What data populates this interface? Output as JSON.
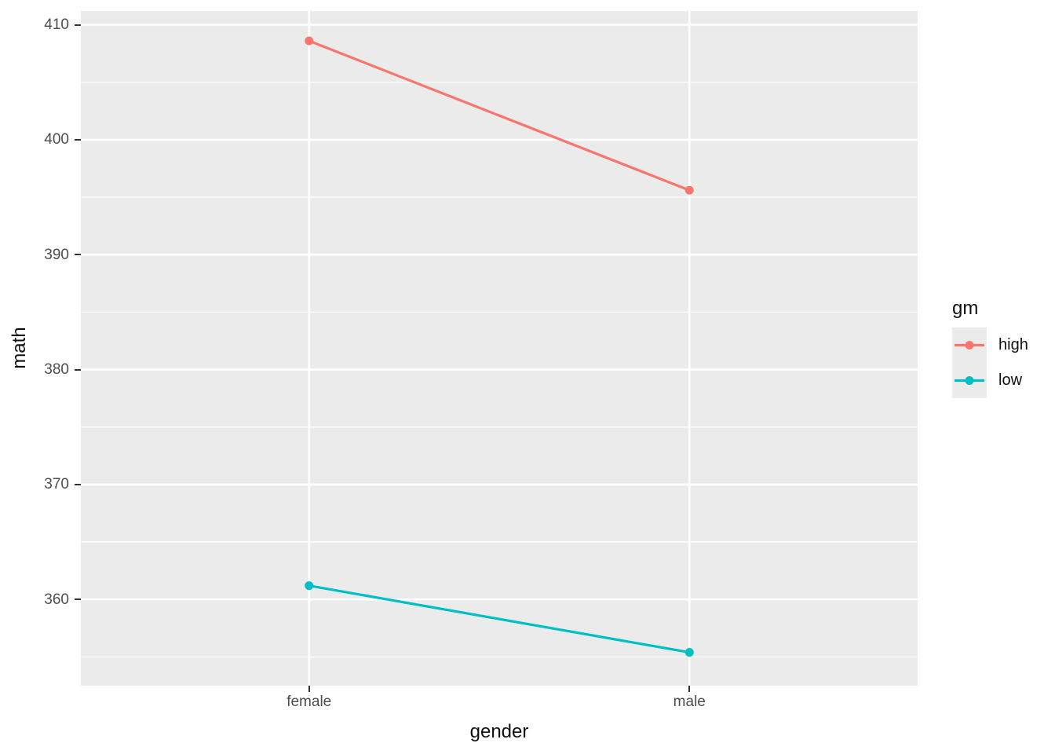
{
  "chart_data": {
    "type": "line",
    "title": "",
    "xlabel": "gender",
    "ylabel": "math",
    "categories": [
      "female",
      "male"
    ],
    "series": [
      {
        "name": "high",
        "color": "#F8766D",
        "values": [
          408.6,
          395.6
        ]
      },
      {
        "name": "low",
        "color": "#00BFC4",
        "values": [
          361.2,
          355.4
        ]
      }
    ],
    "ylim": [
      352.5,
      411.2
    ],
    "yticks_major": [
      360,
      370,
      380,
      390,
      400,
      410
    ],
    "yticks_minor": [
      355,
      365,
      375,
      385,
      395,
      405
    ],
    "grid": "white major+minor horizontal lines, white vertical lines at category positions",
    "legend": {
      "title": "gm",
      "position": "right"
    },
    "colors": {
      "panel_background": "#EBEBEB",
      "grid": "#FFFFFF",
      "tick_mark": "#333333",
      "tick_label": "#4D4D4D",
      "axis_title": "#111111",
      "series_high": "#F8766D",
      "series_low": "#00BFC4"
    }
  }
}
